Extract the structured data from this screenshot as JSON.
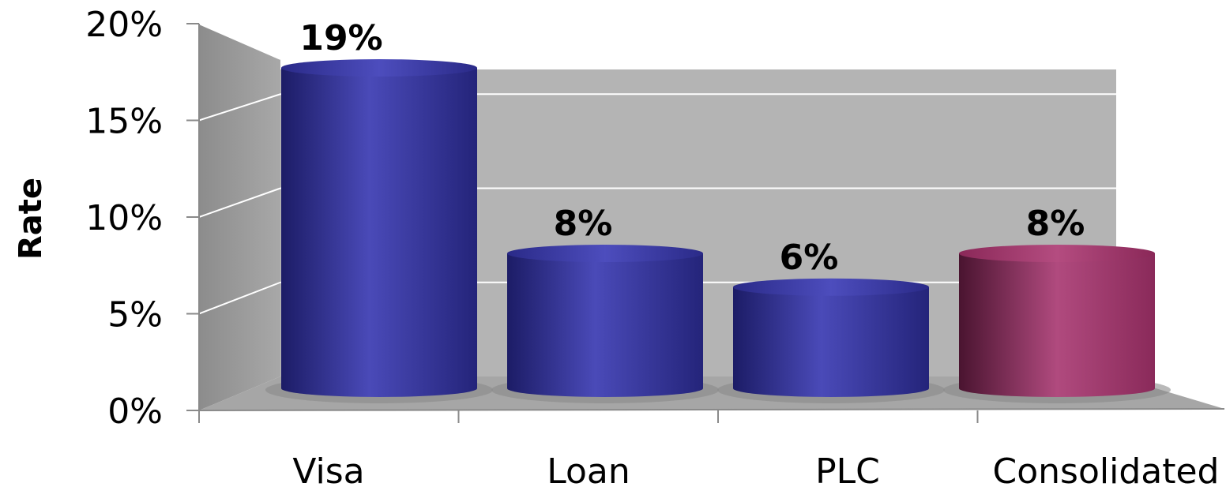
{
  "chart_data": {
    "type": "bar",
    "style": "3d-cylinder",
    "categories": [
      "Visa",
      "Loan",
      "PLC",
      "Consolidated"
    ],
    "values": [
      19,
      8,
      6,
      8
    ],
    "data_labels": [
      "19%",
      "8%",
      "6%",
      "8%"
    ],
    "bar_colors": [
      "#3b3ba8",
      "#3b3ba8",
      "#3b3ba8",
      "#9b3468"
    ],
    "ylabel": "Rate",
    "ylim": [
      0,
      20
    ],
    "y_ticks": [
      0,
      5,
      10,
      15,
      20
    ],
    "y_tick_labels": [
      "0%",
      "5%",
      "10%",
      "15%",
      "20%"
    ],
    "grid": true,
    "legend": "none"
  }
}
